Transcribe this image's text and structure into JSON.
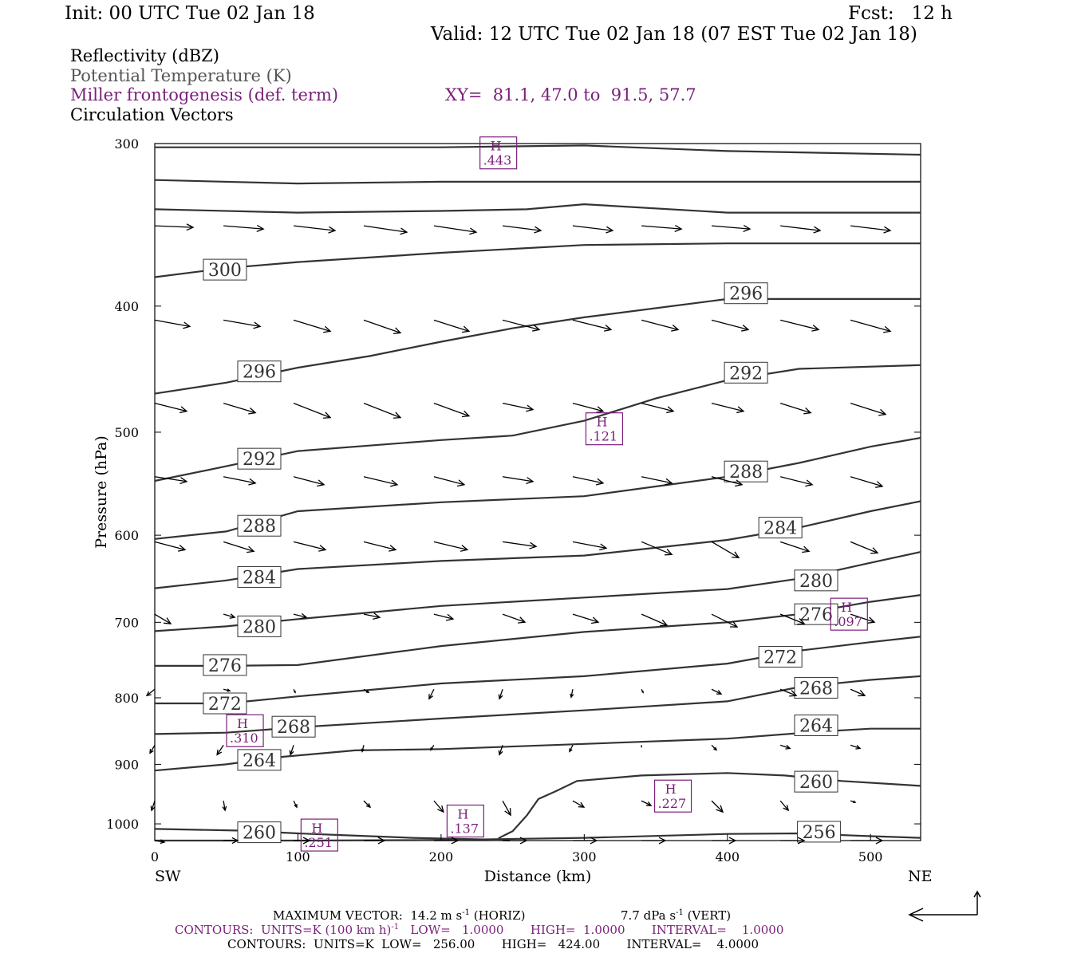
{
  "header": {
    "init": "Init: 00 UTC Tue 02 Jan 18",
    "fcst": "Fcst:   12 h",
    "valid": "Valid: 12 UTC Tue 02 Jan 18 (07 EST Tue 02 Jan 18)"
  },
  "legend": {
    "reflectivity": "Reflectivity (dBZ)",
    "theta": "Potential Temperature (K)",
    "frontogenesis": "Miller frontogenesis (def. term)",
    "xy": "XY=  81.1, 47.0 to  91.5, 57.7",
    "vectors": "Circulation Vectors"
  },
  "colors": {
    "theta": "#333333",
    "frontogenesis": "#7a1f7a",
    "vectors": "#000000"
  },
  "footer": {
    "max_vector_a": "MAXIMUM VECTOR:  14.2 m s",
    "max_vector_sup": "-1",
    "max_vector_b": " (HORIZ)",
    "max_vector_c": "7.7 dPa s",
    "max_vector_sup2": "-1",
    "max_vector_d": " (VERT)",
    "contours1_a": "CONTOURS:  UNITS=K (100 km h)",
    "contours1_sup": "-1",
    "contours1_b": "   LOW=   1.0000       HIGH=  1.0000       INTERVAL=    1.0000",
    "contours2": "CONTOURS:  UNITS=K  LOW=   256.00       HIGH=   424.00       INTERVAL=    4.0000"
  },
  "chart_data": {
    "type": "line",
    "title": "",
    "xlabel": "Distance (km)",
    "ylabel": "Pressure (hPa)",
    "xlim": [
      0,
      535
    ],
    "ylim": [
      1030,
      300
    ],
    "y_scale": "log",
    "xticks": [
      0,
      100,
      200,
      300,
      400,
      500
    ],
    "yticks": [
      300,
      400,
      500,
      600,
      700,
      800,
      900,
      1000
    ],
    "x_end_labels": {
      "left": "SW",
      "right": "NE"
    },
    "isentropes": [
      {
        "theta": 256,
        "points": [
          [
            0,
            1030
          ],
          [
            100,
            1030
          ],
          [
            200,
            1029
          ],
          [
            300,
            1025
          ],
          [
            400,
            1018
          ],
          [
            450,
            1017
          ],
          [
            500,
            1022
          ],
          [
            535,
            1025
          ]
        ],
        "labels": [
          [
            464,
            1014
          ]
        ]
      },
      {
        "theta": 260,
        "points": [
          [
            0,
            1009
          ],
          [
            60,
            1012
          ],
          [
            100,
            1017
          ],
          [
            130,
            1020
          ],
          [
            180,
            1025
          ],
          [
            230,
            1028
          ],
          [
            248,
            1030
          ]
        ],
        "labels": [
          [
            73,
            1015
          ]
        ]
      },
      {
        "theta": 260,
        "points": [
          [
            240,
            1026
          ],
          [
            250,
            1013
          ],
          [
            260,
            985
          ],
          [
            268,
            957
          ],
          [
            280,
            944
          ],
          [
            295,
            927
          ],
          [
            340,
            918
          ],
          [
            400,
            914
          ],
          [
            440,
            918
          ],
          [
            480,
            927
          ],
          [
            535,
            935
          ]
        ],
        "labels": [
          [
            462,
            928
          ]
        ]
      },
      {
        "theta": 264,
        "points": [
          [
            0,
            910
          ],
          [
            50,
            900
          ],
          [
            90,
            888
          ],
          [
            140,
            878
          ],
          [
            200,
            876
          ],
          [
            300,
            868
          ],
          [
            400,
            860
          ],
          [
            460,
            850
          ],
          [
            500,
            845
          ],
          [
            535,
            845
          ]
        ],
        "labels": [
          [
            73,
            893
          ],
          [
            462,
            840
          ]
        ]
      },
      {
        "theta": 268,
        "points": [
          [
            0,
            853
          ],
          [
            50,
            851
          ],
          [
            100,
            843
          ],
          [
            200,
            830
          ],
          [
            300,
            818
          ],
          [
            400,
            805
          ],
          [
            450,
            785
          ],
          [
            500,
            775
          ],
          [
            535,
            770
          ]
        ],
        "labels": [
          [
            97,
            842
          ],
          [
            462,
            786
          ]
        ]
      },
      {
        "theta": 272,
        "points": [
          [
            0,
            808
          ],
          [
            50,
            808
          ],
          [
            100,
            798
          ],
          [
            200,
            780
          ],
          [
            300,
            770
          ],
          [
            400,
            753
          ],
          [
            450,
            736
          ],
          [
            500,
            725
          ],
          [
            535,
            718
          ]
        ],
        "labels": [
          [
            49,
            808
          ],
          [
            437,
            744
          ]
        ]
      },
      {
        "theta": 276,
        "points": [
          [
            0,
            756
          ],
          [
            50,
            756
          ],
          [
            100,
            755
          ],
          [
            200,
            730
          ],
          [
            300,
            712
          ],
          [
            400,
            700
          ],
          [
            450,
            690
          ],
          [
            500,
            675
          ],
          [
            535,
            667
          ]
        ],
        "labels": [
          [
            49,
            755
          ],
          [
            462,
            690
          ]
        ]
      },
      {
        "theta": 280,
        "points": [
          [
            0,
            711
          ],
          [
            50,
            705
          ],
          [
            100,
            696
          ],
          [
            200,
            680
          ],
          [
            300,
            670
          ],
          [
            400,
            660
          ],
          [
            450,
            648
          ],
          [
            500,
            630
          ],
          [
            535,
            618
          ]
        ],
        "labels": [
          [
            73,
            705
          ],
          [
            462,
            650
          ]
        ]
      },
      {
        "theta": 284,
        "points": [
          [
            0,
            659
          ],
          [
            50,
            650
          ],
          [
            100,
            637
          ],
          [
            200,
            628
          ],
          [
            300,
            622
          ],
          [
            400,
            605
          ],
          [
            450,
            592
          ],
          [
            500,
            575
          ],
          [
            535,
            565
          ]
        ],
        "labels": [
          [
            73,
            646
          ],
          [
            437,
            592
          ]
        ]
      },
      {
        "theta": 288,
        "points": [
          [
            0,
            604
          ],
          [
            50,
            596
          ],
          [
            100,
            575
          ],
          [
            200,
            566
          ],
          [
            300,
            560
          ],
          [
            400,
            541
          ],
          [
            450,
            528
          ],
          [
            500,
            513
          ],
          [
            535,
            505
          ]
        ],
        "labels": [
          [
            73,
            590
          ],
          [
            413,
            536
          ]
        ]
      },
      {
        "theta": 292,
        "points": [
          [
            0,
            545
          ],
          [
            50,
            531
          ],
          [
            100,
            517
          ],
          [
            200,
            507
          ],
          [
            250,
            503
          ],
          [
            300,
            490
          ],
          [
            350,
            471
          ],
          [
            400,
            456
          ],
          [
            450,
            447
          ],
          [
            535,
            444
          ]
        ],
        "labels": [
          [
            73,
            524
          ],
          [
            413,
            450
          ]
        ]
      },
      {
        "theta": 296,
        "points": [
          [
            0,
            467
          ],
          [
            50,
            458
          ],
          [
            100,
            446
          ],
          [
            150,
            437
          ],
          [
            200,
            426
          ],
          [
            250,
            416
          ],
          [
            300,
            408
          ],
          [
            400,
            395
          ],
          [
            450,
            395
          ],
          [
            535,
            395
          ]
        ],
        "labels": [
          [
            73,
            449
          ],
          [
            413,
            391
          ]
        ]
      },
      {
        "theta": 300,
        "points": [
          [
            0,
            380
          ],
          [
            50,
            374
          ],
          [
            100,
            370
          ],
          [
            200,
            364
          ],
          [
            300,
            359
          ],
          [
            400,
            358
          ],
          [
            535,
            358
          ]
        ],
        "labels": [
          [
            49,
            375
          ]
        ]
      },
      {
        "theta": "unlabeled",
        "points": [
          [
            0,
            337
          ],
          [
            100,
            339
          ],
          [
            200,
            338
          ],
          [
            260,
            337
          ],
          [
            300,
            334
          ],
          [
            400,
            339
          ],
          [
            535,
            339
          ]
        ],
        "labels": []
      },
      {
        "theta": "unlabeled",
        "points": [
          [
            0,
            320
          ],
          [
            100,
            322
          ],
          [
            200,
            321
          ],
          [
            300,
            321
          ],
          [
            400,
            321
          ],
          [
            535,
            321
          ]
        ],
        "labels": []
      },
      {
        "theta": "unlabeled",
        "points": [
          [
            0,
            302
          ],
          [
            100,
            302
          ],
          [
            200,
            302
          ],
          [
            300,
            301
          ],
          [
            400,
            304
          ],
          [
            535,
            306
          ]
        ],
        "labels": []
      }
    ],
    "frontogenesis_maxima": [
      {
        "label": "H",
        "value": ".443",
        "x": 240,
        "p": 305
      },
      {
        "label": "H",
        "value": ".121",
        "x": 314,
        "p": 497
      },
      {
        "label": "H",
        "value": ".097",
        "x": 485,
        "p": 690
      },
      {
        "label": "H",
        "value": ".310",
        "x": 63,
        "p": 848
      },
      {
        "label": "H",
        "value": ".227",
        "x": 362,
        "p": 952
      },
      {
        "label": "H",
        "value": ".137",
        "x": 217,
        "p": 995
      },
      {
        "label": "H",
        "value": ".251",
        "x": 115,
        "p": 1020
      }
    ],
    "vectors": {
      "x": [
        0,
        48,
        97,
        146,
        195,
        243,
        292,
        340,
        389,
        437,
        486
      ],
      "p": [
        347,
        410,
        475,
        541,
        607,
        690,
        788,
        870,
        960,
        1030
      ],
      "dx_px": [
        [
          48,
          50,
          52,
          54,
          53,
          48,
          50,
          50,
          48,
          50,
          50
        ],
        [
          44,
          46,
          46,
          46,
          44,
          46,
          48,
          46,
          46,
          48,
          50
        ],
        [
          40,
          40,
          46,
          46,
          44,
          38,
          38,
          40,
          40,
          38,
          44
        ],
        [
          40,
          40,
          38,
          42,
          38,
          38,
          38,
          38,
          38,
          40,
          40
        ],
        [
          38,
          38,
          40,
          40,
          42,
          42,
          42,
          38,
          34,
          36,
          34
        ],
        [
          20,
          14,
          16,
          20,
          24,
          28,
          32,
          32,
          32,
          30,
          30
        ],
        [
          -10,
          8,
          2,
          6,
          -6,
          -4,
          -2,
          2,
          12,
          20,
          18
        ],
        [
          -6,
          -8,
          -4,
          -2,
          -4,
          -4,
          -4,
          0,
          6,
          12,
          12
        ],
        [
          -4,
          2,
          4,
          8,
          12,
          10,
          14,
          12,
          14,
          10,
          6
        ],
        [
          12,
          18,
          20,
          26,
          30,
          30,
          30,
          30,
          30,
          30,
          40
        ]
      ],
      "dy_px": [
        [
          2,
          4,
          6,
          8,
          8,
          6,
          6,
          4,
          4,
          6,
          6
        ],
        [
          8,
          8,
          14,
          16,
          14,
          12,
          12,
          12,
          12,
          12,
          14
        ],
        [
          10,
          12,
          18,
          18,
          16,
          8,
          10,
          10,
          10,
          12,
          14
        ],
        [
          6,
          8,
          10,
          10,
          10,
          6,
          8,
          8,
          10,
          10,
          12
        ],
        [
          10,
          12,
          10,
          10,
          10,
          6,
          8,
          16,
          20,
          12,
          14
        ],
        [
          12,
          4,
          4,
          4,
          6,
          10,
          10,
          14,
          16,
          12,
          10
        ],
        [
          8,
          2,
          4,
          4,
          12,
          12,
          10,
          4,
          6,
          8,
          8
        ],
        [
          10,
          12,
          12,
          8,
          6,
          12,
          8,
          2,
          6,
          4,
          4
        ],
        [
          12,
          12,
          8,
          8,
          14,
          18,
          8,
          6,
          14,
          12,
          2
        ],
        [
          2,
          0,
          0,
          0,
          0,
          0,
          0,
          0,
          0,
          0,
          0
        ]
      ]
    }
  }
}
